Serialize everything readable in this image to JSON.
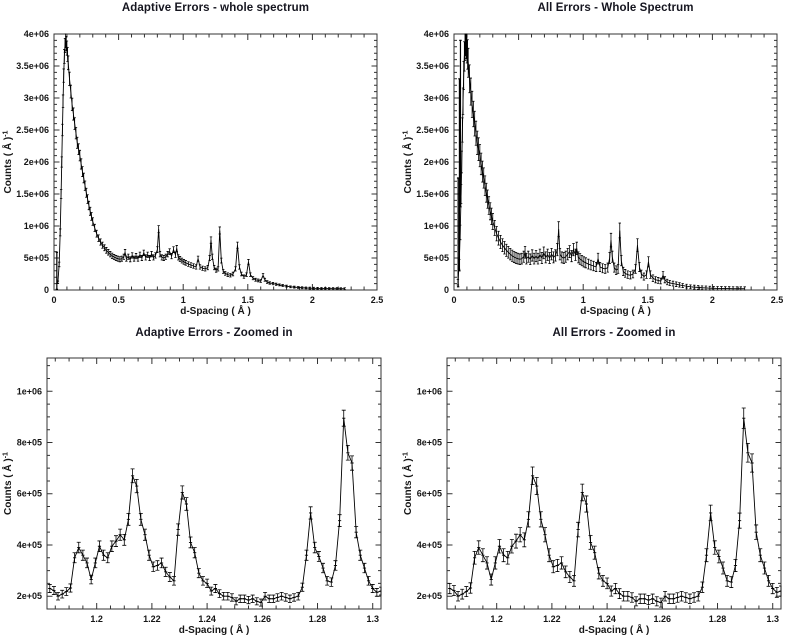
{
  "page": {
    "background": "#ffffff",
    "text_color": "#161616",
    "frame_color": "#333333",
    "data_color": "#000000"
  },
  "datasets": {
    "whole_spectrum": [
      [
        0.03,
        120000
      ],
      [
        0.04,
        400000
      ],
      [
        0.048,
        900000
      ],
      [
        0.055,
        1500000
      ],
      [
        0.06,
        2000000
      ],
      [
        0.065,
        2500000
      ],
      [
        0.07,
        2950000
      ],
      [
        0.075,
        3350000
      ],
      [
        0.08,
        3650000
      ],
      [
        0.085,
        3820000
      ],
      [
        0.09,
        3900000
      ],
      [
        0.095,
        3850000
      ],
      [
        0.1,
        3780000
      ],
      [
        0.105,
        3680000
      ],
      [
        0.11,
        3550000
      ],
      [
        0.12,
        3300000
      ],
      [
        0.13,
        3100000
      ],
      [
        0.14,
        2900000
      ],
      [
        0.15,
        2750000
      ],
      [
        0.16,
        2600000
      ],
      [
        0.17,
        2450000
      ],
      [
        0.18,
        2300000
      ],
      [
        0.19,
        2200000
      ],
      [
        0.2,
        2100000
      ],
      [
        0.21,
        1970000
      ],
      [
        0.22,
        1850000
      ],
      [
        0.23,
        1750000
      ],
      [
        0.24,
        1630000
      ],
      [
        0.25,
        1520000
      ],
      [
        0.26,
        1420000
      ],
      [
        0.27,
        1320000
      ],
      [
        0.28,
        1230000
      ],
      [
        0.29,
        1150000
      ],
      [
        0.3,
        1070000
      ],
      [
        0.315,
        970000
      ],
      [
        0.33,
        880000
      ],
      [
        0.345,
        810000
      ],
      [
        0.36,
        750000
      ],
      [
        0.375,
        700000
      ],
      [
        0.39,
        660000
      ],
      [
        0.405,
        620000
      ],
      [
        0.42,
        590000
      ],
      [
        0.435,
        560000
      ],
      [
        0.45,
        535000
      ],
      [
        0.465,
        515000
      ],
      [
        0.48,
        500000
      ],
      [
        0.495,
        490000
      ],
      [
        0.51,
        480000
      ],
      [
        0.525,
        490000
      ],
      [
        0.54,
        520000
      ],
      [
        0.55,
        590000
      ],
      [
        0.56,
        490000
      ],
      [
        0.575,
        520000
      ],
      [
        0.59,
        480000
      ],
      [
        0.605,
        540000
      ],
      [
        0.62,
        490000
      ],
      [
        0.635,
        530000
      ],
      [
        0.65,
        490000
      ],
      [
        0.665,
        550000
      ],
      [
        0.68,
        500000
      ],
      [
        0.695,
        580000
      ],
      [
        0.71,
        510000
      ],
      [
        0.725,
        550000
      ],
      [
        0.74,
        500000
      ],
      [
        0.755,
        560000
      ],
      [
        0.77,
        510000
      ],
      [
        0.785,
        540000
      ],
      [
        0.8,
        630000
      ],
      [
        0.81,
        950000
      ],
      [
        0.82,
        560000
      ],
      [
        0.835,
        510000
      ],
      [
        0.85,
        500000
      ],
      [
        0.865,
        520000
      ],
      [
        0.88,
        560000
      ],
      [
        0.895,
        600000
      ],
      [
        0.91,
        530000
      ],
      [
        0.925,
        630000
      ],
      [
        0.94,
        550000
      ],
      [
        0.95,
        650000
      ],
      [
        0.962,
        510000
      ],
      [
        0.975,
        485000
      ],
      [
        0.99,
        460000
      ],
      [
        1.005,
        440000
      ],
      [
        1.02,
        425000
      ],
      [
        1.04,
        405000
      ],
      [
        1.06,
        390000
      ],
      [
        1.08,
        375000
      ],
      [
        1.1,
        360000
      ],
      [
        1.115,
        490000
      ],
      [
        1.13,
        360000
      ],
      [
        1.15,
        340000
      ],
      [
        1.17,
        330000
      ],
      [
        1.19,
        350000
      ],
      [
        1.205,
        500000
      ],
      [
        1.215,
        780000
      ],
      [
        1.225,
        520000
      ],
      [
        1.24,
        350000
      ],
      [
        1.255,
        310000
      ],
      [
        1.27,
        330000
      ],
      [
        1.283,
        930000
      ],
      [
        1.295,
        460000
      ],
      [
        1.31,
        290000
      ],
      [
        1.325,
        260000
      ],
      [
        1.345,
        240000
      ],
      [
        1.365,
        230000
      ],
      [
        1.385,
        250000
      ],
      [
        1.405,
        330000
      ],
      [
        1.42,
        700000
      ],
      [
        1.435,
        360000
      ],
      [
        1.45,
        250000
      ],
      [
        1.47,
        210000
      ],
      [
        1.49,
        240000
      ],
      [
        1.505,
        440000
      ],
      [
        1.52,
        240000
      ],
      [
        1.54,
        185000
      ],
      [
        1.56,
        160000
      ],
      [
        1.58,
        150000
      ],
      [
        1.6,
        140000
      ],
      [
        1.618,
        230000
      ],
      [
        1.632,
        160000
      ],
      [
        1.65,
        125000
      ],
      [
        1.67,
        110000
      ],
      [
        1.695,
        100000
      ],
      [
        1.72,
        90000
      ],
      [
        1.745,
        80000
      ],
      [
        1.77,
        70000
      ],
      [
        1.8,
        60000
      ],
      [
        1.83,
        50000
      ],
      [
        1.86,
        45000
      ],
      [
        1.89,
        40000
      ],
      [
        1.92,
        35000
      ],
      [
        1.95,
        32000
      ],
      [
        1.98,
        29000
      ],
      [
        2.01,
        27000
      ],
      [
        2.04,
        25000
      ],
      [
        2.07,
        24000
      ],
      [
        2.1,
        23000
      ],
      [
        2.13,
        22000
      ],
      [
        2.16,
        21000
      ],
      [
        2.19,
        21000
      ],
      [
        2.22,
        20000
      ],
      [
        2.25,
        20000
      ]
    ],
    "zoomed_region": [
      [
        1.183,
        230000
      ],
      [
        1.1845,
        222000
      ],
      [
        1.186,
        200000
      ],
      [
        1.1875,
        208000
      ],
      [
        1.189,
        218000
      ],
      [
        1.1905,
        232000
      ],
      [
        1.192,
        350000
      ],
      [
        1.1935,
        390000
      ],
      [
        1.195,
        360000
      ],
      [
        1.1965,
        330000
      ],
      [
        1.198,
        265000
      ],
      [
        1.1995,
        330000
      ],
      [
        1.201,
        395000
      ],
      [
        1.2025,
        360000
      ],
      [
        1.204,
        350000
      ],
      [
        1.2055,
        395000
      ],
      [
        1.207,
        415000
      ],
      [
        1.2085,
        440000
      ],
      [
        1.21,
        420000
      ],
      [
        1.2115,
        500000
      ],
      [
        1.213,
        670000
      ],
      [
        1.2145,
        630000
      ],
      [
        1.216,
        500000
      ],
      [
        1.2175,
        440000
      ],
      [
        1.219,
        360000
      ],
      [
        1.2205,
        315000
      ],
      [
        1.222,
        320000
      ],
      [
        1.2235,
        330000
      ],
      [
        1.225,
        295000
      ],
      [
        1.2265,
        275000
      ],
      [
        1.228,
        260000
      ],
      [
        1.2295,
        460000
      ],
      [
        1.231,
        605000
      ],
      [
        1.2325,
        560000
      ],
      [
        1.234,
        410000
      ],
      [
        1.2355,
        370000
      ],
      [
        1.237,
        290000
      ],
      [
        1.2385,
        260000
      ],
      [
        1.24,
        250000
      ],
      [
        1.2415,
        220000
      ],
      [
        1.243,
        230000
      ],
      [
        1.2445,
        210000
      ],
      [
        1.246,
        200000
      ],
      [
        1.2475,
        200000
      ],
      [
        1.249,
        195000
      ],
      [
        1.2505,
        180000
      ],
      [
        1.252,
        190000
      ],
      [
        1.2535,
        190000
      ],
      [
        1.255,
        185000
      ],
      [
        1.2565,
        190000
      ],
      [
        1.258,
        180000
      ],
      [
        1.2595,
        175000
      ],
      [
        1.261,
        200000
      ],
      [
        1.2625,
        190000
      ],
      [
        1.264,
        190000
      ],
      [
        1.2655,
        195000
      ],
      [
        1.267,
        200000
      ],
      [
        1.2685,
        195000
      ],
      [
        1.27,
        190000
      ],
      [
        1.2715,
        195000
      ],
      [
        1.273,
        200000
      ],
      [
        1.2745,
        235000
      ],
      [
        1.276,
        360000
      ],
      [
        1.2775,
        525000
      ],
      [
        1.279,
        390000
      ],
      [
        1.2805,
        355000
      ],
      [
        1.282,
        310000
      ],
      [
        1.2835,
        260000
      ],
      [
        1.285,
        255000
      ],
      [
        1.2865,
        320000
      ],
      [
        1.288,
        495000
      ],
      [
        1.2895,
        895000
      ],
      [
        1.291,
        760000
      ],
      [
        1.2925,
        720000
      ],
      [
        1.294,
        450000
      ],
      [
        1.2955,
        360000
      ],
      [
        1.297,
        310000
      ],
      [
        1.2985,
        260000
      ],
      [
        1.3,
        230000
      ],
      [
        1.3015,
        215000
      ],
      [
        1.303,
        220000
      ]
    ]
  },
  "chart_data": [
    {
      "type": "line",
      "title": "Adaptive Errors - whole spectrum",
      "xlabel": "d-Spacing ( Å )",
      "ylabel_base": "Counts ( Å )",
      "ylabel_sup": "-1",
      "dataset": "whole_spectrum",
      "xlim": [
        0,
        2.5
      ],
      "ylim": [
        0,
        4000000
      ],
      "x_major_ticks": [
        0,
        0.5,
        1,
        1.5,
        2,
        2.5
      ],
      "x_tick_labels": [
        "0",
        "0.5",
        "1",
        "1.5",
        "2",
        "2.5"
      ],
      "x_minor_step": 0.1,
      "y_major_ticks": [
        0,
        500000,
        1000000,
        1500000,
        2000000,
        2500000,
        3000000,
        3500000,
        4000000
      ],
      "y_tick_labels": [
        "0",
        "5e+05",
        "1e+06",
        "1.5e+06",
        "2e+06",
        "2.5e+06",
        "3e+06",
        "3.5e+06",
        "4e+06"
      ],
      "y_minor_step": 100000,
      "err_k": 57,
      "err_min": 15000,
      "extra_error_columns": [
        [
          0.022,
          300000,
          290000
        ]
      ],
      "markers": false,
      "cap_halfwidth": 1.2,
      "grid": false,
      "legend": "none",
      "line_color": "#000000"
    },
    {
      "type": "line",
      "title": "All Errors - Whole Spectrum",
      "xlabel": "d-Spacing ( Å )",
      "ylabel_base": "Counts ( Å )",
      "ylabel_sup": "-1",
      "dataset": "whole_spectrum",
      "xlim": [
        0,
        2.5
      ],
      "ylim": [
        0,
        4000000
      ],
      "x_major_ticks": [
        0,
        0.5,
        1,
        1.5,
        2,
        2.5
      ],
      "x_tick_labels": [
        "0",
        "0.5",
        "1",
        "1.5",
        "2",
        "2.5"
      ],
      "x_minor_step": 0.1,
      "y_major_ticks": [
        0,
        500000,
        1000000,
        1500000,
        2000000,
        2500000,
        3000000,
        3500000,
        4000000
      ],
      "y_tick_labels": [
        "0",
        "5e+05",
        "1e+06",
        "1.5e+06",
        "2e+06",
        "2.5e+06",
        "3e+06",
        "3.5e+06",
        "4e+06"
      ],
      "y_minor_step": 100000,
      "err_k": 120,
      "err_min": 30000,
      "extra_error_columns": [
        [
          0.032,
          900000,
          850000
        ],
        [
          0.042,
          1800000,
          1500000
        ],
        [
          0.05,
          2600000,
          1300000
        ]
      ],
      "markers": false,
      "cap_halfwidth": 1.2,
      "grid": false,
      "legend": "none",
      "line_color": "#000000"
    },
    {
      "type": "line",
      "title": "Adaptive Errors - Zoomed in",
      "xlabel": "d-Spacing ( Å )",
      "ylabel_base": "Counts ( Å )",
      "ylabel_sup": "-1",
      "dataset": "zoomed_region",
      "xlim": [
        1.182,
        1.303
      ],
      "ylim": [
        150000,
        1130000
      ],
      "x_major_ticks": [
        1.2,
        1.22,
        1.24,
        1.26,
        1.28,
        1.3
      ],
      "x_tick_labels": [
        "1.2",
        "1.22",
        "1.24",
        "1.26",
        "1.28",
        "1.3"
      ],
      "x_minor_step": 0.005,
      "y_major_ticks": [
        200000,
        400000,
        600000,
        800000,
        1000000
      ],
      "y_tick_labels": [
        "2e+05",
        "4e+05",
        "6e+05",
        "8e+05",
        "1e+06"
      ],
      "y_minor_step": 50000,
      "err_k": 33,
      "err_min": 10000,
      "extra_error_columns": [],
      "markers": true,
      "cap_halfwidth": 2,
      "grid": false,
      "legend": "none",
      "line_color": "#000000"
    },
    {
      "type": "line",
      "title": "All Errors - Zoomed in",
      "xlabel": "d-Spacing ( Å )",
      "ylabel_base": "Counts ( Å )",
      "ylabel_sup": "-1",
      "dataset": "zoomed_region",
      "xlim": [
        1.182,
        1.303
      ],
      "ylim": [
        150000,
        1130000
      ],
      "x_major_ticks": [
        1.2,
        1.22,
        1.24,
        1.26,
        1.28,
        1.3
      ],
      "x_tick_labels": [
        "1.2",
        "1.22",
        "1.24",
        "1.26",
        "1.28",
        "1.3"
      ],
      "x_minor_step": 0.005,
      "y_major_ticks": [
        200000,
        400000,
        600000,
        800000,
        1000000
      ],
      "y_tick_labels": [
        "2e+05",
        "4e+05",
        "6e+05",
        "8e+05",
        "1e+06"
      ],
      "y_minor_step": 50000,
      "err_k": 42,
      "err_min": 12000,
      "extra_error_columns": [],
      "markers": true,
      "cap_halfwidth": 2,
      "grid": false,
      "legend": "none",
      "line_color": "#000000"
    }
  ]
}
